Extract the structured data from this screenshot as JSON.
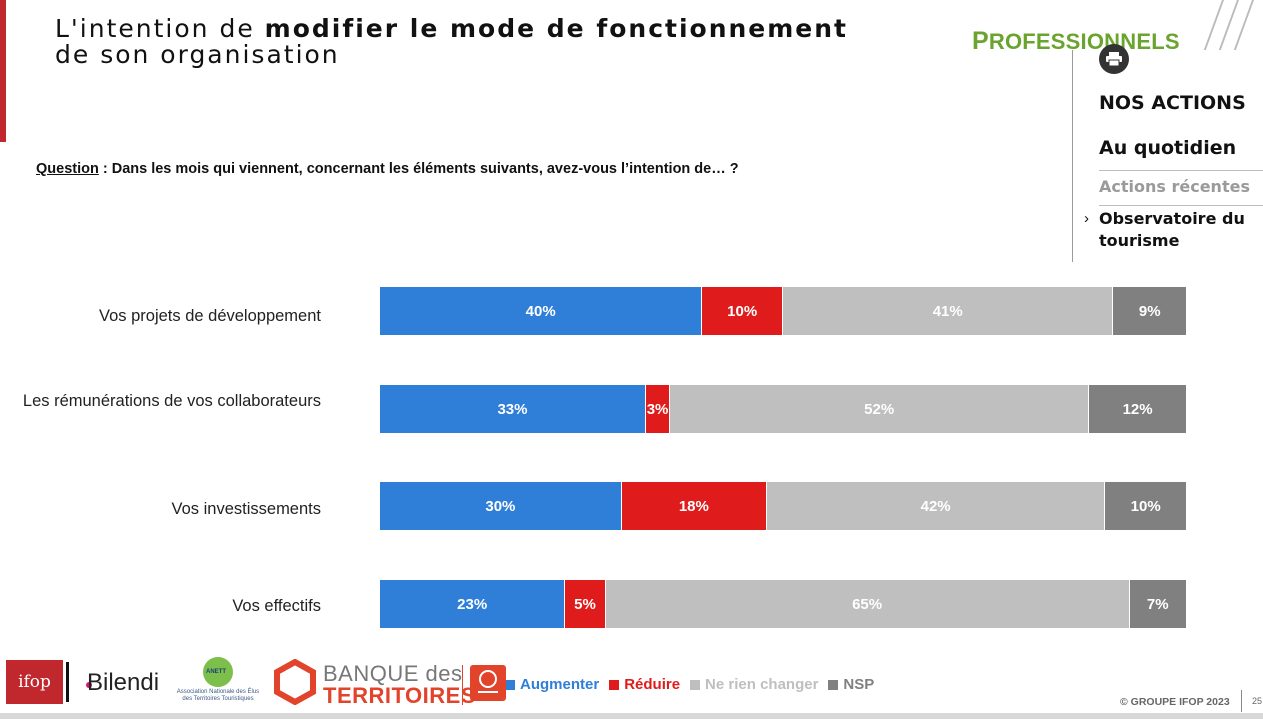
{
  "title": {
    "part1": "L'intention de ",
    "bold": "modifier le mode de fonctionnement",
    "line2": "de son organisation"
  },
  "question": {
    "label": "Question",
    "text": " : Dans les mois qui viennent, concernant les éléments suivants, avez-vous l’intention de… ?"
  },
  "header": {
    "section_first": "P",
    "section_rest": "ROFESSIONNELS"
  },
  "sidebar": {
    "items": [
      {
        "label": "NOS ACTIONS"
      },
      {
        "label": "Au quotidien"
      },
      {
        "label": "Actions récentes"
      },
      {
        "label": "Observatoire du tourisme"
      }
    ],
    "print_icon": "printer-icon",
    "chevron_icon": "chevron-right-icon"
  },
  "chart_data": {
    "type": "bar",
    "orientation": "horizontal",
    "stacked": true,
    "categories": [
      "Vos projets de développement",
      "Les rémunérations de vos collaborateurs",
      "Vos investissements",
      "Vos effectifs"
    ],
    "series": [
      {
        "name": "Augmenter",
        "color": "#2f7ed8",
        "values": [
          40,
          33,
          30,
          23
        ]
      },
      {
        "name": "Réduire",
        "color": "#e01b1b",
        "values": [
          10,
          3,
          18,
          5
        ]
      },
      {
        "name": "Ne rien changer",
        "color": "#bfbfbf",
        "values": [
          41,
          52,
          42,
          65
        ]
      },
      {
        "name": "NSP",
        "color": "#808080",
        "values": [
          9,
          12,
          10,
          7
        ]
      }
    ],
    "value_suffix": "%",
    "xlim": [
      0,
      100
    ],
    "legend_position": "bottom"
  },
  "logos": {
    "ifop": "ifop",
    "bilendi": "Bilendi",
    "anett": "Association Nationale des Élus des Territoires Touristiques",
    "anett_badge": "ANETT",
    "banque_line1": "BANQUE des",
    "banque_line2": "TERRITOIRES"
  },
  "footer": {
    "copyright": "© GROUPE IFOP 2023",
    "page_number": "25"
  }
}
